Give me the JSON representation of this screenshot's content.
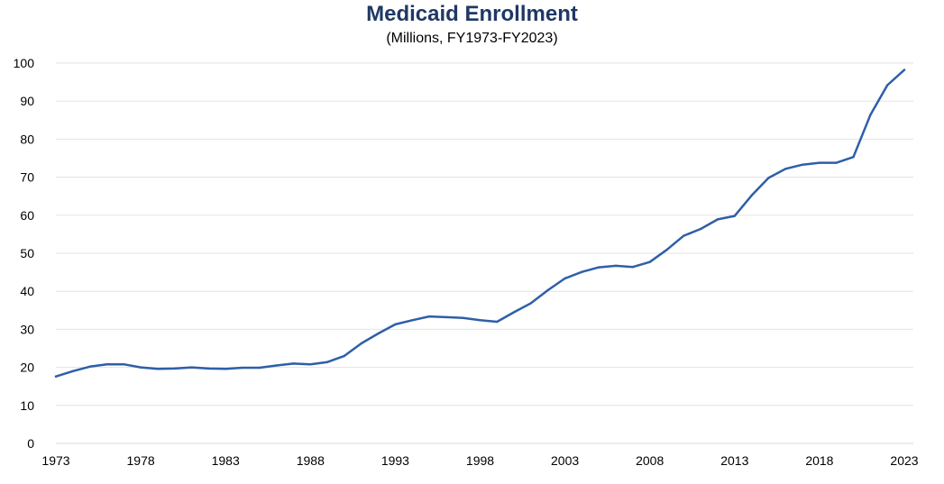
{
  "chart_data": {
    "type": "line",
    "title": "Medicaid Enrollment",
    "subtitle": "(Millions, FY1973-FY2023)",
    "xlabel": "",
    "ylabel": "",
    "xlim": [
      1973,
      2023
    ],
    "ylim": [
      0,
      100
    ],
    "x_ticks": [
      "1973",
      "1978",
      "1983",
      "1988",
      "1993",
      "1998",
      "2003",
      "2008",
      "2013",
      "2018",
      "2023"
    ],
    "y_ticks": [
      "0",
      "10",
      "20",
      "30",
      "40",
      "50",
      "60",
      "70",
      "80",
      "90",
      "100"
    ],
    "grid": "horizontal",
    "legend": "none",
    "line_color": "#2e5fa8",
    "series": [
      {
        "x": [
          1973,
          1974,
          1975,
          1976,
          1977,
          1978,
          1979,
          1980,
          1981,
          1982,
          1983,
          1984,
          1985,
          1986,
          1987,
          1988,
          1989,
          1990,
          1991,
          1992,
          1993,
          1994,
          1995,
          1996,
          1997,
          1998,
          1999,
          2000,
          2001,
          2002,
          2003,
          2004,
          2005,
          2006,
          2007,
          2008,
          2009,
          2010,
          2011,
          2012,
          2013,
          2014,
          2015,
          2016,
          2017,
          2018,
          2019,
          2020,
          2021,
          2022,
          2023
        ],
        "values": [
          17.6,
          19.0,
          20.2,
          20.8,
          20.8,
          20.0,
          19.6,
          19.7,
          20.0,
          19.7,
          19.6,
          19.9,
          19.9,
          20.5,
          21.0,
          20.8,
          21.4,
          23.0,
          26.3,
          28.9,
          31.3,
          32.4,
          33.4,
          33.2,
          33.0,
          32.4,
          32.0,
          34.5,
          36.9,
          40.3,
          43.4,
          45.1,
          46.3,
          46.7,
          46.4,
          47.7,
          50.9,
          54.6,
          56.4,
          58.9,
          59.8,
          65.2,
          69.8,
          72.2,
          73.3,
          73.8,
          73.8,
          75.3,
          86.4,
          94.2,
          98.2
        ]
      }
    ]
  }
}
